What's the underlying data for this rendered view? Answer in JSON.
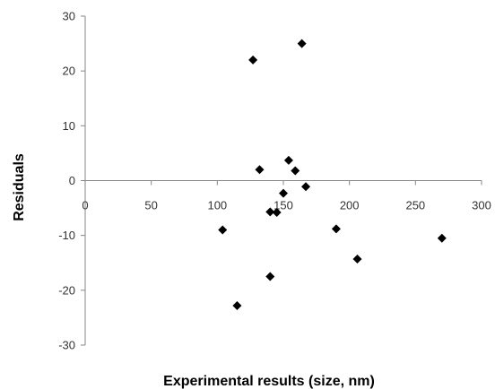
{
  "chart_data": {
    "type": "scatter",
    "title": "",
    "xlabel": "Experimental results (size, nm)",
    "ylabel": "Residuals",
    "xlim": [
      0,
      300
    ],
    "ylim": [
      -30,
      30
    ],
    "x_ticks": [
      0,
      50,
      100,
      150,
      200,
      250,
      300
    ],
    "y_ticks": [
      30,
      20,
      10,
      0,
      -10,
      -20,
      -30
    ],
    "grid": false,
    "marker": "diamond",
    "marker_color": "#000000",
    "series": [
      {
        "points": [
          {
            "x": 104,
            "y": -9
          },
          {
            "x": 115,
            "y": -22.8
          },
          {
            "x": 127,
            "y": 22
          },
          {
            "x": 132,
            "y": 2
          },
          {
            "x": 140,
            "y": -5.7
          },
          {
            "x": 140,
            "y": -17.5
          },
          {
            "x": 145,
            "y": -5.8
          },
          {
            "x": 150,
            "y": -2.3
          },
          {
            "x": 154,
            "y": 3.7
          },
          {
            "x": 159,
            "y": 1.8
          },
          {
            "x": 164,
            "y": 25
          },
          {
            "x": 167,
            "y": -1.1
          },
          {
            "x": 190,
            "y": -8.8
          },
          {
            "x": 206,
            "y": -14.3
          },
          {
            "x": 270,
            "y": -10.5
          }
        ]
      }
    ]
  }
}
